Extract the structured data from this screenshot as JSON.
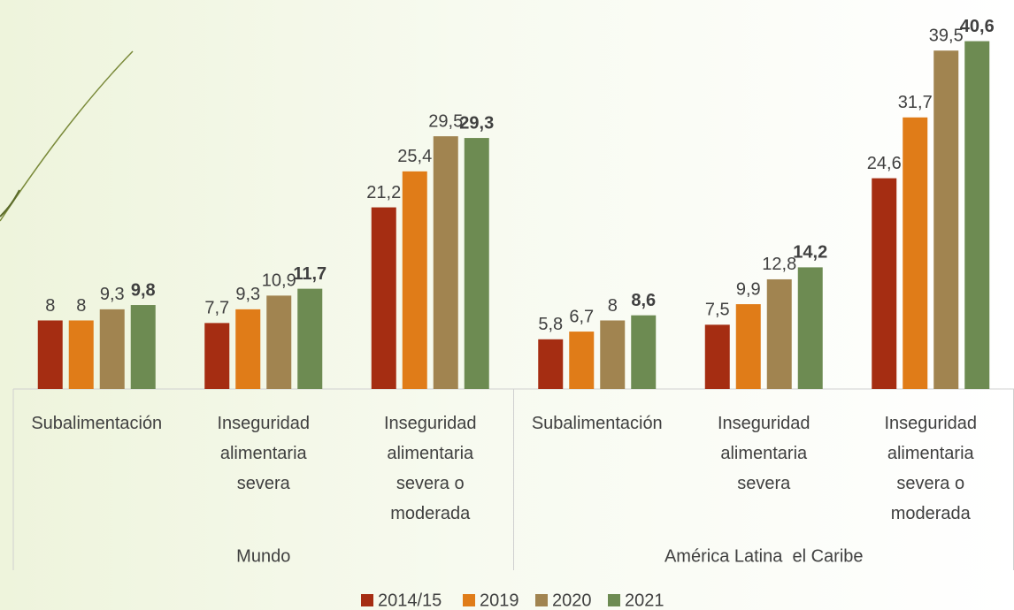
{
  "chart_data": {
    "type": "bar",
    "categories": [
      "Subalimentación",
      "Inseguridad alimentaria severa",
      "Inseguridad alimentaria severa o moderada",
      "Subalimentación",
      "Inseguridad alimentaria severa",
      "Inseguridad alimentaria severa o moderada"
    ],
    "groups": [
      "Mundo",
      "América Latina  el Caribe"
    ],
    "series": [
      {
        "name": "2014/15",
        "color": "#a52d12",
        "values": [
          8,
          7.7,
          21.2,
          5.8,
          7.5,
          24.6
        ],
        "value_labels": [
          "8",
          "7,7",
          "21,2",
          "5,8",
          "7,5",
          "24,6"
        ]
      },
      {
        "name": "2019",
        "color": "#e07c18",
        "values": [
          8,
          9.3,
          25.4,
          6.7,
          9.9,
          31.7
        ],
        "value_labels": [
          "8",
          "9,3",
          "25,4",
          "6,7",
          "9,9",
          "31,7"
        ]
      },
      {
        "name": "2020",
        "color": "#a18450",
        "values": [
          9.3,
          10.9,
          29.5,
          8,
          12.8,
          39.5
        ],
        "value_labels": [
          "9,3",
          "10,9",
          "29,5",
          "8",
          "12,8",
          "39,5"
        ]
      },
      {
        "name": "2021",
        "color": "#6d8b52",
        "values": [
          9.8,
          11.7,
          29.3,
          8.6,
          14.2,
          40.6
        ],
        "value_labels": [
          "9,8",
          "11,7",
          "29,3",
          "8,6",
          "14,2",
          "40,6"
        ]
      }
    ],
    "ylim": [
      0,
      42
    ],
    "legend": "bottom"
  }
}
